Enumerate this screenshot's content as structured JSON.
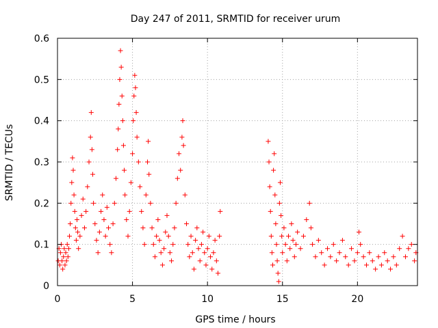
{
  "chart_data": {
    "type": "scatter",
    "title": "Day 247 of 2011, SRMTID for receiver urum",
    "xlabel": "GPS time / hours",
    "ylabel": "SRMTID / TECUs",
    "xlim": [
      0,
      24
    ],
    "ylim": [
      0,
      0.6
    ],
    "xticks": [
      0,
      5,
      10,
      15,
      20
    ],
    "xtick_labels": [
      "0",
      "5",
      "10",
      "15",
      "20"
    ],
    "yticks": [
      0,
      0.1,
      0.2,
      0.3,
      0.4,
      0.5,
      0.6
    ],
    "ytick_labels": [
      "0",
      "0.1",
      "0.2",
      "0.3",
      "0.4",
      "0.5",
      "0.6"
    ],
    "grid": true,
    "marker": "+",
    "color": "#ff0000",
    "series": [
      {
        "name": "SRMTID",
        "points": [
          [
            0.05,
            0.06
          ],
          [
            0.1,
            0.09
          ],
          [
            0.15,
            0.05
          ],
          [
            0.2,
            0.08
          ],
          [
            0.25,
            0.1
          ],
          [
            0.3,
            0.06
          ],
          [
            0.35,
            0.04
          ],
          [
            0.4,
            0.07
          ],
          [
            0.45,
            0.09
          ],
          [
            0.5,
            0.05
          ],
          [
            0.55,
            0.08
          ],
          [
            0.6,
            0.06
          ],
          [
            0.65,
            0.1
          ],
          [
            0.7,
            0.07
          ],
          [
            0.75,
            0.09
          ],
          [
            0.8,
            0.12
          ],
          [
            0.85,
            0.15
          ],
          [
            0.9,
            0.2
          ],
          [
            0.95,
            0.25
          ],
          [
            1.0,
            0.31
          ],
          [
            1.05,
            0.28
          ],
          [
            1.1,
            0.22
          ],
          [
            1.15,
            0.18
          ],
          [
            1.2,
            0.14
          ],
          [
            1.25,
            0.11
          ],
          [
            1.3,
            0.16
          ],
          [
            1.35,
            0.13
          ],
          [
            1.4,
            0.09
          ],
          [
            1.5,
            0.12
          ],
          [
            1.6,
            0.17
          ],
          [
            1.7,
            0.21
          ],
          [
            1.8,
            0.14
          ],
          [
            1.9,
            0.18
          ],
          [
            2.0,
            0.24
          ],
          [
            2.1,
            0.3
          ],
          [
            2.2,
            0.36
          ],
          [
            2.25,
            0.42
          ],
          [
            2.3,
            0.33
          ],
          [
            2.35,
            0.27
          ],
          [
            2.4,
            0.2
          ],
          [
            2.5,
            0.15
          ],
          [
            2.6,
            0.11
          ],
          [
            2.7,
            0.08
          ],
          [
            2.8,
            0.13
          ],
          [
            2.9,
            0.18
          ],
          [
            3.0,
            0.22
          ],
          [
            3.1,
            0.16
          ],
          [
            3.2,
            0.12
          ],
          [
            3.3,
            0.19
          ],
          [
            3.4,
            0.14
          ],
          [
            3.5,
            0.1
          ],
          [
            3.6,
            0.08
          ],
          [
            3.7,
            0.15
          ],
          [
            3.8,
            0.2
          ],
          [
            3.9,
            0.26
          ],
          [
            4.0,
            0.33
          ],
          [
            4.05,
            0.38
          ],
          [
            4.1,
            0.44
          ],
          [
            4.15,
            0.5
          ],
          [
            4.2,
            0.57
          ],
          [
            4.25,
            0.53
          ],
          [
            4.3,
            0.46
          ],
          [
            4.35,
            0.4
          ],
          [
            4.4,
            0.34
          ],
          [
            4.45,
            0.28
          ],
          [
            4.5,
            0.22
          ],
          [
            4.6,
            0.16
          ],
          [
            4.7,
            0.12
          ],
          [
            4.8,
            0.18
          ],
          [
            4.9,
            0.25
          ],
          [
            5.0,
            0.32
          ],
          [
            5.05,
            0.4
          ],
          [
            5.1,
            0.46
          ],
          [
            5.15,
            0.51
          ],
          [
            5.2,
            0.48
          ],
          [
            5.25,
            0.42
          ],
          [
            5.3,
            0.36
          ],
          [
            5.4,
            0.3
          ],
          [
            5.5,
            0.24
          ],
          [
            5.6,
            0.18
          ],
          [
            5.7,
            0.14
          ],
          [
            5.8,
            0.1
          ],
          [
            5.9,
            0.22
          ],
          [
            6.0,
            0.3
          ],
          [
            6.05,
            0.35
          ],
          [
            6.1,
            0.27
          ],
          [
            6.2,
            0.2
          ],
          [
            6.3,
            0.14
          ],
          [
            6.4,
            0.1
          ],
          [
            6.5,
            0.07
          ],
          [
            6.6,
            0.12
          ],
          [
            6.7,
            0.16
          ],
          [
            6.8,
            0.11
          ],
          [
            6.9,
            0.08
          ],
          [
            7.0,
            0.05
          ],
          [
            7.1,
            0.09
          ],
          [
            7.2,
            0.13
          ],
          [
            7.3,
            0.17
          ],
          [
            7.4,
            0.12
          ],
          [
            7.5,
            0.08
          ],
          [
            7.6,
            0.06
          ],
          [
            7.7,
            0.1
          ],
          [
            7.8,
            0.14
          ],
          [
            7.9,
            0.2
          ],
          [
            8.0,
            0.26
          ],
          [
            8.1,
            0.32
          ],
          [
            8.2,
            0.28
          ],
          [
            8.3,
            0.36
          ],
          [
            8.35,
            0.4
          ],
          [
            8.4,
            0.34
          ],
          [
            8.5,
            0.22
          ],
          [
            8.6,
            0.15
          ],
          [
            8.7,
            0.1
          ],
          [
            8.8,
            0.07
          ],
          [
            8.9,
            0.12
          ],
          [
            9.0,
            0.08
          ],
          [
            9.1,
            0.04
          ],
          [
            9.2,
            0.11
          ],
          [
            9.3,
            0.14
          ],
          [
            9.4,
            0.09
          ],
          [
            9.5,
            0.06
          ],
          [
            9.6,
            0.1
          ],
          [
            9.7,
            0.13
          ],
          [
            9.8,
            0.08
          ],
          [
            9.9,
            0.05
          ],
          [
            10.0,
            0.09
          ],
          [
            10.1,
            0.12
          ],
          [
            10.2,
            0.07
          ],
          [
            10.3,
            0.04
          ],
          [
            10.4,
            0.08
          ],
          [
            10.5,
            0.11
          ],
          [
            10.6,
            0.06
          ],
          [
            10.7,
            0.03
          ],
          [
            10.8,
            0.12
          ],
          [
            10.85,
            0.18
          ],
          [
            14.05,
            0.35
          ],
          [
            14.1,
            0.3
          ],
          [
            14.15,
            0.24
          ],
          [
            14.2,
            0.18
          ],
          [
            14.25,
            0.12
          ],
          [
            14.3,
            0.08
          ],
          [
            14.35,
            0.05
          ],
          [
            14.4,
            0.28
          ],
          [
            14.45,
            0.32
          ],
          [
            14.5,
            0.22
          ],
          [
            14.55,
            0.15
          ],
          [
            14.6,
            0.1
          ],
          [
            14.65,
            0.06
          ],
          [
            14.7,
            0.03
          ],
          [
            14.75,
            0.01
          ],
          [
            14.8,
            0.2
          ],
          [
            14.85,
            0.25
          ],
          [
            14.9,
            0.17
          ],
          [
            14.95,
            0.12
          ],
          [
            15.0,
            0.08
          ],
          [
            15.1,
            0.14
          ],
          [
            15.2,
            0.1
          ],
          [
            15.3,
            0.06
          ],
          [
            15.4,
            0.12
          ],
          [
            15.5,
            0.09
          ],
          [
            15.6,
            0.15
          ],
          [
            15.7,
            0.11
          ],
          [
            15.8,
            0.07
          ],
          [
            15.9,
            0.1
          ],
          [
            16.0,
            0.13
          ],
          [
            16.2,
            0.09
          ],
          [
            16.4,
            0.12
          ],
          [
            16.6,
            0.16
          ],
          [
            16.8,
            0.2
          ],
          [
            16.9,
            0.14
          ],
          [
            17.0,
            0.1
          ],
          [
            17.2,
            0.07
          ],
          [
            17.4,
            0.11
          ],
          [
            17.6,
            0.08
          ],
          [
            17.8,
            0.05
          ],
          [
            18.0,
            0.09
          ],
          [
            18.2,
            0.07
          ],
          [
            18.4,
            0.1
          ],
          [
            18.6,
            0.06
          ],
          [
            18.8,
            0.08
          ],
          [
            19.0,
            0.11
          ],
          [
            19.2,
            0.07
          ],
          [
            19.4,
            0.05
          ],
          [
            19.6,
            0.09
          ],
          [
            19.8,
            0.06
          ],
          [
            20.0,
            0.08
          ],
          [
            20.1,
            0.13
          ],
          [
            20.2,
            0.1
          ],
          [
            20.4,
            0.07
          ],
          [
            20.6,
            0.05
          ],
          [
            20.8,
            0.08
          ],
          [
            21.0,
            0.06
          ],
          [
            21.2,
            0.04
          ],
          [
            21.4,
            0.07
          ],
          [
            21.6,
            0.05
          ],
          [
            21.8,
            0.08
          ],
          [
            22.0,
            0.06
          ],
          [
            22.2,
            0.04
          ],
          [
            22.4,
            0.07
          ],
          [
            22.6,
            0.05
          ],
          [
            22.8,
            0.09
          ],
          [
            23.0,
            0.12
          ],
          [
            23.2,
            0.07
          ],
          [
            23.4,
            0.09
          ],
          [
            23.6,
            0.1
          ],
          [
            23.8,
            0.06
          ],
          [
            23.9,
            0.08
          ]
        ]
      }
    ]
  }
}
